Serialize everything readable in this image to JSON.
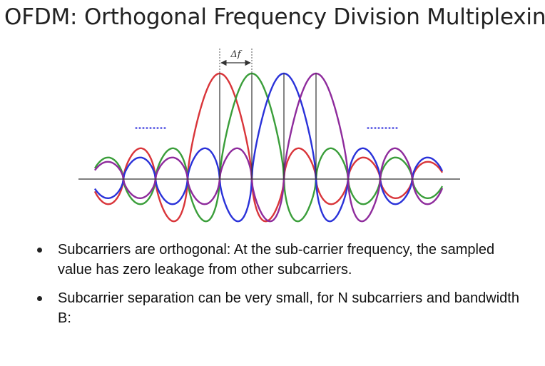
{
  "title": "OFDM: Orthogonal Frequency Division Multiplexing",
  "diagram": {
    "spacing_label": "Δf",
    "ellipsis_left": "………",
    "ellipsis_right": "………",
    "subcarrier_count": 4,
    "subcarrier_colors": [
      "#d9353a",
      "#3a9e3a",
      "#2a32d9",
      "#8e2b9c"
    ],
    "ellipsis_color": "#6b6be6"
  },
  "bullets": [
    "Subcarriers are orthogonal: At the sub-carrier frequency, the sampled value has zero leakage from other subcarriers.",
    "Subcarrier separation can be very small, for N subcarriers and bandwidth B:"
  ]
}
